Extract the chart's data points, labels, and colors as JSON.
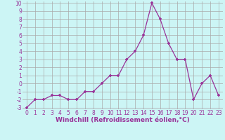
{
  "x": [
    0,
    1,
    2,
    3,
    4,
    5,
    6,
    7,
    8,
    9,
    10,
    11,
    12,
    13,
    14,
    15,
    16,
    17,
    18,
    19,
    20,
    21,
    22,
    23
  ],
  "y": [
    -3,
    -2,
    -2,
    -1.5,
    -1.5,
    -2,
    -2,
    -1,
    -1,
    0,
    1,
    1,
    3,
    4,
    6,
    10,
    8,
    5,
    3,
    3,
    -2,
    0,
    1,
    -1.5
  ],
  "line_color": "#993399",
  "marker": "+",
  "bg_color": "#ccf5f5",
  "grid_color": "#aaaaaa",
  "xlabel": "Windchill (Refroidissement éolien,°C)",
  "xlabel_fontsize": 6.5,
  "tick_fontsize": 5.5,
  "ylim": [
    -3,
    10
  ],
  "xlim": [
    -0.5,
    23.5
  ],
  "yticks": [
    -3,
    -2,
    -1,
    0,
    1,
    2,
    3,
    4,
    5,
    6,
    7,
    8,
    9,
    10
  ],
  "xticks": [
    0,
    1,
    2,
    3,
    4,
    5,
    6,
    7,
    8,
    9,
    10,
    11,
    12,
    13,
    14,
    15,
    16,
    17,
    18,
    19,
    20,
    21,
    22,
    23
  ]
}
